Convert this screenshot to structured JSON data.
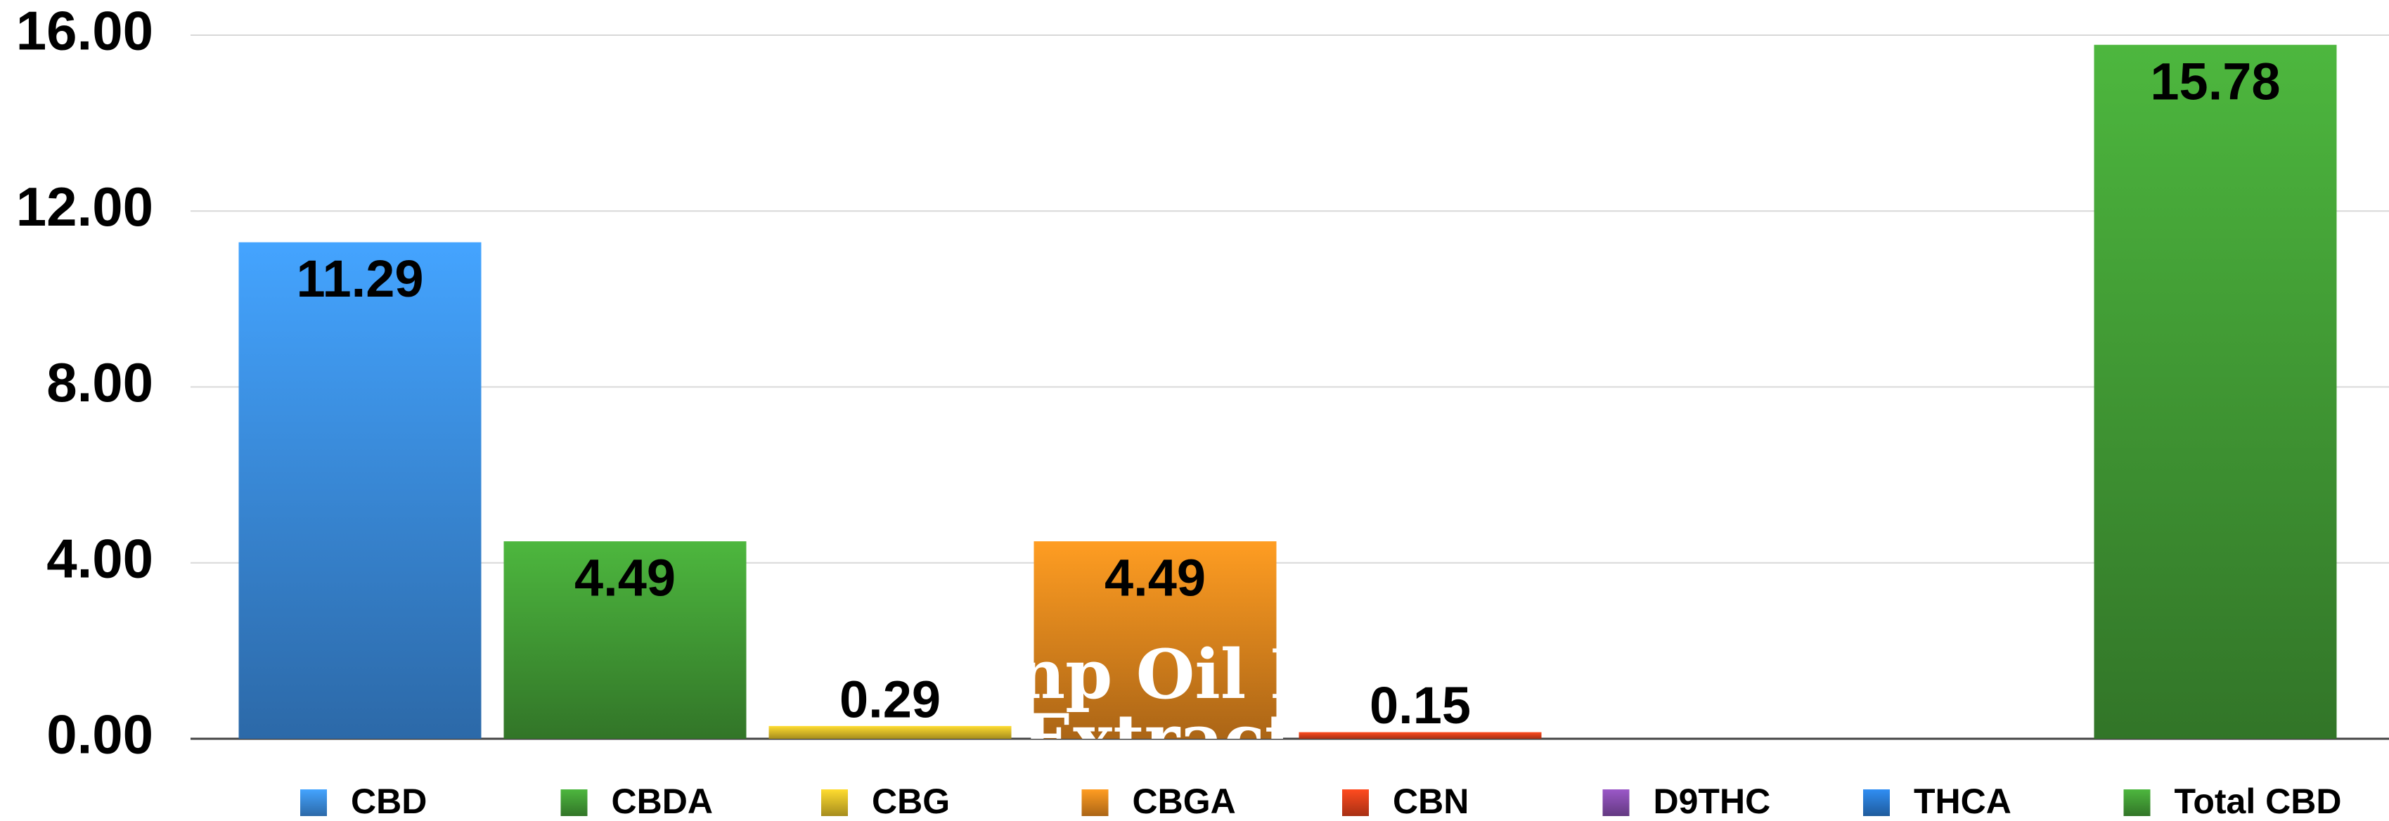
{
  "chart_data": {
    "type": "bar",
    "categories": [
      "CBD",
      "CBDA",
      "CBG",
      "CBGA",
      "CBN",
      "D9THC",
      "THCA",
      "Total CBD"
    ],
    "values": [
      11.29,
      4.49,
      0.29,
      4.49,
      0.15,
      null,
      null,
      15.78
    ],
    "colors": [
      "#3d92ea",
      "#45a337",
      "#e6c42a",
      "#ee8c1e",
      "#e8431c",
      "#8a4fb3",
      "#2b7fd9",
      "#45a337"
    ],
    "ylim": [
      0,
      16
    ],
    "yticks": [
      {
        "value": 0,
        "label": "0.00"
      },
      {
        "value": 4,
        "label": "4.00"
      },
      {
        "value": 8,
        "label": "8.00"
      },
      {
        "value": 12,
        "label": "12.00"
      },
      {
        "value": 16,
        "label": "16.00"
      }
    ],
    "grid": true,
    "legend": "bottom",
    "annotation": [
      "np Oil I",
      "Extract"
    ]
  }
}
